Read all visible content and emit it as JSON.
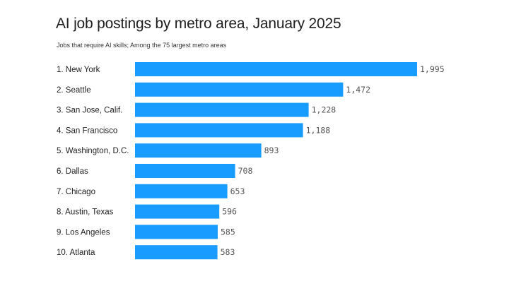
{
  "title": "AI job postings by metro area, January 2025",
  "subtitle": "Jobs that require AI skills; Among the 75 largest metro areas",
  "colors": {
    "bar": "#189cff",
    "background": "#ffffff"
  },
  "chart_data": {
    "type": "bar",
    "orientation": "horizontal",
    "title": "AI job postings by metro area, January 2025",
    "subtitle": "Jobs that require AI skills; Among the 75 largest metro areas",
    "categories": [
      "1. New York",
      "2. Seattle",
      "3. San Jose, Calif.",
      "4. San Francisco",
      "5. Washington, D.C.",
      "6. Dallas",
      "7. Chicago",
      "8. Austin, Texas",
      "9. Los Angeles",
      "10. Atlanta"
    ],
    "values": [
      1995,
      1472,
      1228,
      1188,
      893,
      708,
      653,
      596,
      585,
      583
    ],
    "value_labels": [
      "1,995",
      "1,472",
      "1,228",
      "1,188",
      "893",
      "708",
      "653",
      "596",
      "585",
      "583"
    ],
    "xlim": [
      0,
      1995
    ],
    "grid": false,
    "legend": "none",
    "xlabel": "",
    "ylabel": ""
  }
}
